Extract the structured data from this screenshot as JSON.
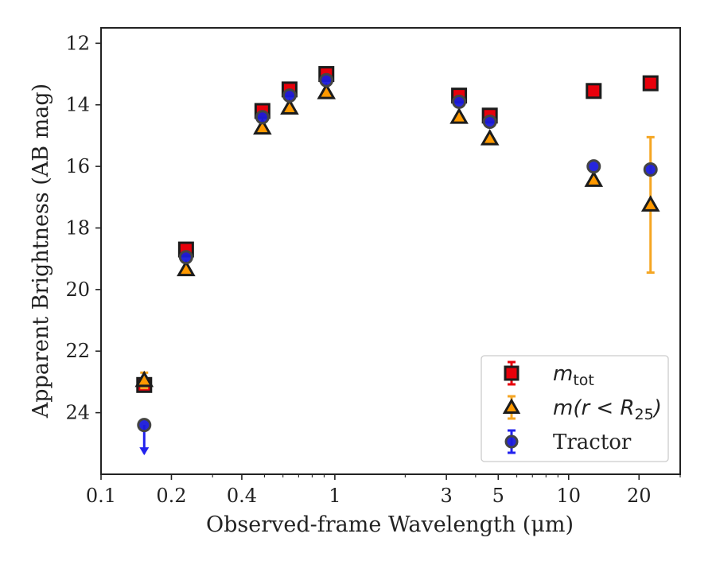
{
  "chart_data": {
    "type": "scatter",
    "xlabel": "Observed-frame Wavelength (μm)",
    "ylabel": "Apparent Brightness (AB mag)",
    "xscale": "log",
    "xlim": [
      0.1,
      30
    ],
    "ylim": [
      26.0,
      11.5
    ],
    "y_inverted": true,
    "x_ticks": [
      0.1,
      0.2,
      0.4,
      1,
      3,
      5,
      10,
      20
    ],
    "x_tick_labels": [
      "0.1",
      "0.2",
      "0.4",
      "1",
      "3",
      "5",
      "10",
      "20"
    ],
    "y_ticks": [
      12,
      14,
      16,
      18,
      20,
      22,
      24
    ],
    "y_tick_labels": [
      "12",
      "14",
      "16",
      "18",
      "20",
      "22",
      "24"
    ],
    "grid": false,
    "legend_position": "bottom-right",
    "series": [
      {
        "name": "m_tot",
        "legend_main": "m",
        "legend_sub": "tot",
        "legend_tail": "",
        "marker": "square",
        "color": "#e8000b",
        "errcolor": "#e8000b",
        "points": [
          {
            "x": 0.153,
            "y": 23.1,
            "err": 0.15
          },
          {
            "x": 0.231,
            "y": 18.7,
            "err": 0.05
          },
          {
            "x": 0.49,
            "y": 14.2,
            "err": 0.05
          },
          {
            "x": 0.64,
            "y": 13.5,
            "err": 0.05
          },
          {
            "x": 0.92,
            "y": 13.0,
            "err": 0.05
          },
          {
            "x": 3.4,
            "y": 13.7,
            "err": 0.05
          },
          {
            "x": 4.6,
            "y": 14.35,
            "err": 0.05
          },
          {
            "x": 12.8,
            "y": 13.55,
            "err": 0.05
          },
          {
            "x": 22.4,
            "y": 13.3,
            "err": 0.05
          }
        ]
      },
      {
        "name": "m(r < R_25)",
        "legend_main": "m(r < R",
        "legend_sub": "25",
        "legend_tail": ")",
        "marker": "triangle",
        "color": "#ff9900",
        "errcolor": "#f5a623",
        "points": [
          {
            "x": 0.153,
            "y": 22.95,
            "err": 0.25
          },
          {
            "x": 0.231,
            "y": 19.35,
            "err": 0.05
          },
          {
            "x": 0.49,
            "y": 14.75,
            "err": 0.05
          },
          {
            "x": 0.64,
            "y": 14.1,
            "err": 0.05
          },
          {
            "x": 0.92,
            "y": 13.6,
            "err": 0.05
          },
          {
            "x": 3.4,
            "y": 14.4,
            "err": 0.05
          },
          {
            "x": 4.6,
            "y": 15.1,
            "err": 0.05
          },
          {
            "x": 12.8,
            "y": 16.45,
            "err": 0.1
          },
          {
            "x": 22.4,
            "y": 17.25,
            "err": 2.2
          }
        ]
      },
      {
        "name": "Tractor",
        "legend_main": "Tractor",
        "legend_sub": "",
        "legend_tail": "",
        "marker": "circle",
        "color": "#1a1adb",
        "errcolor": "#2222ee",
        "points": [
          {
            "x": 0.153,
            "y": 24.4,
            "err": 0,
            "upper_limit": true
          },
          {
            "x": 0.231,
            "y": 18.95,
            "err": 0.05
          },
          {
            "x": 0.49,
            "y": 14.4,
            "err": 0.05
          },
          {
            "x": 0.64,
            "y": 13.7,
            "err": 0.05
          },
          {
            "x": 0.92,
            "y": 13.2,
            "err": 0.05
          },
          {
            "x": 3.4,
            "y": 13.9,
            "err": 0.05
          },
          {
            "x": 4.6,
            "y": 14.55,
            "err": 0.05
          },
          {
            "x": 12.8,
            "y": 16.0,
            "err": 0.05
          },
          {
            "x": 22.4,
            "y": 16.1,
            "err": 0.1
          }
        ]
      }
    ]
  }
}
